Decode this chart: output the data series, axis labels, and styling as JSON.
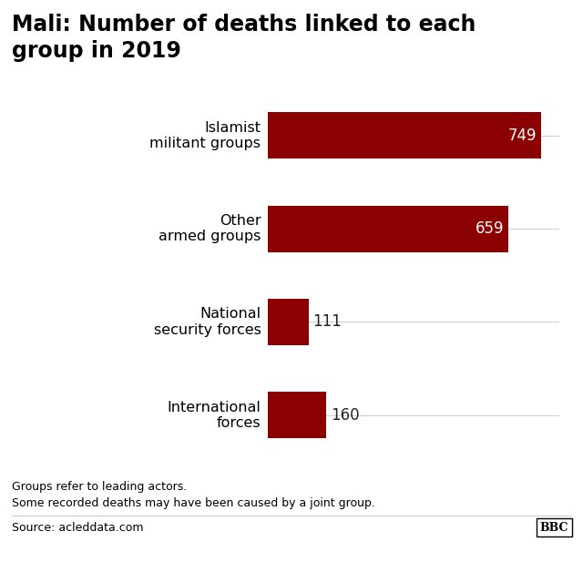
{
  "title": "Mali: Number of deaths linked to each\ngroup in 2019",
  "categories": [
    "Islamist\nmilitant groups",
    "Other\narmed groups",
    "National\nsecurity forces",
    "International\nforces"
  ],
  "values": [
    749,
    659,
    111,
    160
  ],
  "bar_color": "#8B0000",
  "value_labels": [
    "749",
    "659",
    "111",
    "160"
  ],
  "xlim": [
    0,
    800
  ],
  "bar_height": 0.5,
  "footnote1": "Groups refer to leading actors.",
  "footnote2": "Some recorded deaths may have been caused by a joint group.",
  "source": "Source: acleddata.com",
  "bbc_label": "BBC",
  "title_fontsize": 17,
  "label_fontsize": 11.5,
  "value_fontsize": 12,
  "bg_color": "#ffffff",
  "text_color": "#000000",
  "value_inside_color": "#ffffff",
  "value_outside_color": "#222222",
  "inside_threshold": 200,
  "separator_color": "#cccccc"
}
